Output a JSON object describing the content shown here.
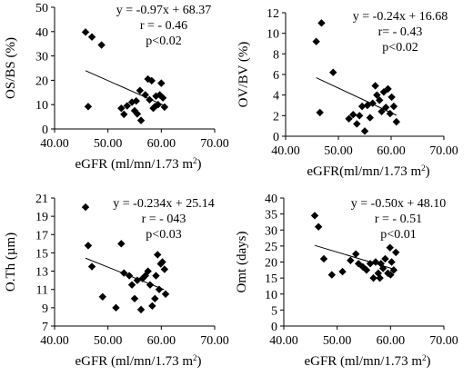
{
  "chart_data": [
    {
      "type": "scatter",
      "xlabel": "eGFR (ml/mn/1.73 m²)",
      "ylabel": "OS/BS (%)",
      "xlim": [
        40,
        70
      ],
      "ylim": [
        0,
        50
      ],
      "xticks": [
        "40.00",
        "50.00",
        "60.00",
        "70.00"
      ],
      "yticks": [
        "0",
        "10",
        "20",
        "30",
        "40",
        "50"
      ],
      "annotations": [
        "y = -0.97x + 68.37",
        "r = - 0.46",
        "p<0.02"
      ],
      "trendline": {
        "slope": -0.97,
        "intercept": 68.37,
        "x_range": [
          45.8,
          60.9
        ]
      },
      "points": [
        [
          45.8,
          39.8
        ],
        [
          47.0,
          37.8
        ],
        [
          48.8,
          34.5
        ],
        [
          46.3,
          9.2
        ],
        [
          52.5,
          8.5
        ],
        [
          53.0,
          6.0
        ],
        [
          53.6,
          9.5
        ],
        [
          54.5,
          11.0
        ],
        [
          55.0,
          7.5
        ],
        [
          55.5,
          6.2
        ],
        [
          55.3,
          11.5
        ],
        [
          56.0,
          15.8
        ],
        [
          56.2,
          3.5
        ],
        [
          57.0,
          14.0
        ],
        [
          57.5,
          20.5
        ],
        [
          57.8,
          12.0
        ],
        [
          58.2,
          19.8
        ],
        [
          58.5,
          8.5
        ],
        [
          58.8,
          9.2
        ],
        [
          59.0,
          13.5
        ],
        [
          59.4,
          10.0
        ],
        [
          59.7,
          14.0
        ],
        [
          60.0,
          18.8
        ],
        [
          60.3,
          12.8
        ],
        [
          60.6,
          9.0
        ]
      ]
    },
    {
      "type": "scatter",
      "xlabel": "eGFR(ml/mn/1.73 m²)",
      "ylabel": "OV/BV (%)",
      "xlim": [
        40,
        70
      ],
      "ylim": [
        0,
        12
      ],
      "xticks": [
        "40.00",
        "50.00",
        "60.00",
        "70.00"
      ],
      "yticks": [
        "0",
        "2",
        "4",
        "6",
        "8",
        "10",
        "12"
      ],
      "annotations": [
        "y = -0.24x + 16.68",
        "r= - 0.43",
        "p<0.02"
      ],
      "trendline": {
        "slope": -0.24,
        "intercept": 16.68,
        "x_range": [
          45.8,
          61.0
        ]
      },
      "points": [
        [
          46.8,
          11.0
        ],
        [
          45.8,
          9.2
        ],
        [
          49.0,
          6.2
        ],
        [
          46.5,
          2.3
        ],
        [
          52.0,
          1.7
        ],
        [
          52.8,
          2.1
        ],
        [
          53.5,
          1.2
        ],
        [
          54.0,
          2.0
        ],
        [
          54.5,
          2.9
        ],
        [
          55.0,
          0.5
        ],
        [
          55.5,
          3.0
        ],
        [
          56.0,
          1.8
        ],
        [
          56.5,
          3.2
        ],
        [
          57.0,
          4.9
        ],
        [
          57.3,
          4.0
        ],
        [
          57.8,
          3.5
        ],
        [
          58.2,
          2.4
        ],
        [
          58.6,
          4.3
        ],
        [
          59.0,
          2.8
        ],
        [
          59.4,
          4.6
        ],
        [
          59.8,
          2.2
        ],
        [
          60.1,
          3.8
        ],
        [
          60.5,
          2.9
        ],
        [
          61.0,
          1.4
        ]
      ]
    },
    {
      "type": "scatter",
      "xlabel": "eGFR (ml/mn/1.73 m²)",
      "ylabel": "O.Th (µm)",
      "xlim": [
        40,
        70
      ],
      "ylim": [
        7,
        21
      ],
      "xticks": [
        "40.00",
        "50.00",
        "60.00",
        "70.00"
      ],
      "yticks": [
        "7",
        "9",
        "11",
        "13",
        "15",
        "17",
        "19",
        "21"
      ],
      "annotations": [
        "y = -0.234x + 25.14",
        "r = - 043",
        "p<0.03"
      ],
      "trendline": {
        "slope": -0.234,
        "intercept": 25.14,
        "x_range": [
          45.8,
          60.5
        ]
      },
      "points": [
        [
          45.8,
          20.0
        ],
        [
          46.3,
          15.8
        ],
        [
          47.0,
          13.5
        ],
        [
          49.0,
          10.2
        ],
        [
          51.5,
          9.0
        ],
        [
          52.5,
          16.0
        ],
        [
          53.0,
          12.8
        ],
        [
          54.0,
          12.5
        ],
        [
          54.5,
          11.5
        ],
        [
          55.0,
          10.0
        ],
        [
          55.5,
          12.0
        ],
        [
          56.2,
          8.8
        ],
        [
          56.5,
          12.2
        ],
        [
          57.0,
          12.5
        ],
        [
          57.5,
          13.0
        ],
        [
          57.9,
          11.5
        ],
        [
          58.3,
          9.2
        ],
        [
          58.8,
          10.0
        ],
        [
          59.0,
          12.5
        ],
        [
          59.3,
          14.8
        ],
        [
          59.6,
          11.0
        ],
        [
          59.9,
          13.8
        ],
        [
          60.2,
          14.0
        ],
        [
          60.6,
          13.2
        ],
        [
          60.8,
          10.5
        ]
      ]
    },
    {
      "type": "scatter",
      "xlabel": "eGFR (ml/mn/1.73 m²)",
      "ylabel": "Omt (days)",
      "xlim": [
        40,
        70
      ],
      "ylim": [
        0,
        40
      ],
      "xticks": [
        "40.00",
        "50.00",
        "60.00",
        "70.00"
      ],
      "yticks": [
        "0",
        "5",
        "10",
        "15",
        "20",
        "25",
        "30",
        "35",
        "40"
      ],
      "annotations": [
        "y = -0.50x + 48.10",
        "r = - 0.51",
        "p<0.01"
      ],
      "trendline": {
        "slope": -0.5,
        "intercept": 48.1,
        "x_range": [
          45.8,
          60.8
        ]
      },
      "points": [
        [
          45.8,
          34.5
        ],
        [
          46.5,
          31.0
        ],
        [
          47.5,
          21.0
        ],
        [
          49.0,
          16.0
        ],
        [
          51.0,
          17.0
        ],
        [
          52.5,
          20.5
        ],
        [
          53.5,
          22.5
        ],
        [
          54.0,
          19.5
        ],
        [
          54.8,
          18.5
        ],
        [
          55.5,
          17.5
        ],
        [
          56.2,
          19.5
        ],
        [
          56.8,
          15.0
        ],
        [
          57.2,
          20.0
        ],
        [
          57.7,
          16.5
        ],
        [
          58.2,
          19.5
        ],
        [
          58.6,
          18.0
        ],
        [
          59.0,
          21.0
        ],
        [
          59.5,
          16.5
        ],
        [
          59.9,
          24.5
        ],
        [
          60.2,
          20.0
        ],
        [
          60.6,
          17.5
        ],
        [
          61.0,
          23.0
        ],
        [
          58.0,
          15.0
        ],
        [
          60.0,
          16.0
        ]
      ]
    }
  ]
}
